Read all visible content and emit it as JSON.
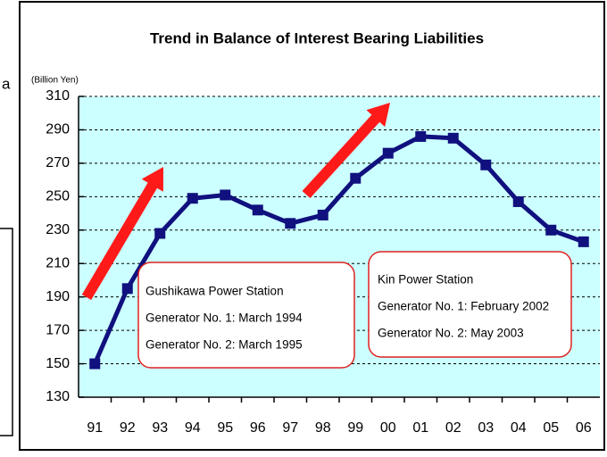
{
  "side_fragment": "a",
  "chart_data": {
    "type": "line",
    "title": "Trend in Balance of Interest Bearing Liabilities",
    "y_unit_label": "(Billion Yen)",
    "categories": [
      "91",
      "92",
      "93",
      "94",
      "95",
      "96",
      "97",
      "98",
      "99",
      "00",
      "01",
      "02",
      "03",
      "04",
      "05",
      "06"
    ],
    "values": [
      150,
      195,
      228,
      249,
      251,
      242,
      234,
      239,
      261,
      276,
      286,
      285,
      269,
      247,
      230,
      223
    ],
    "color": "#10107e",
    "ylim": [
      130,
      310
    ],
    "yticks": [
      130,
      150,
      170,
      190,
      210,
      230,
      250,
      270,
      290,
      310
    ],
    "grid": true,
    "plot_background": "#ccffff",
    "annotations": [
      {
        "lines": [
          "Gushikawa Power Station",
          "Generator No. 1: March 1994",
          "Generator No. 2: March 1995"
        ]
      },
      {
        "lines": [
          "Kin Power Station",
          "Generator No. 1: February 2002",
          "Generator No. 2: May 2003"
        ]
      }
    ]
  }
}
